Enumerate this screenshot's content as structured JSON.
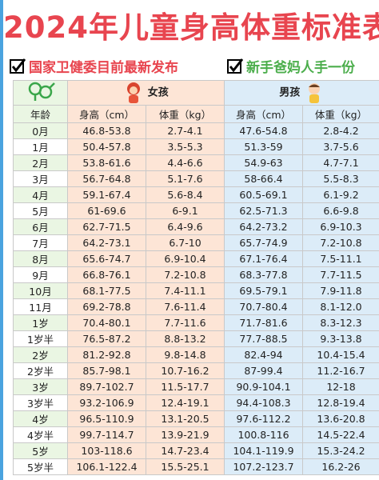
{
  "header": {
    "title_year": "2024年",
    "title_main": "儿童身高体重标准表",
    "badge_left": "国家卫健委目前最新发布",
    "badge_right": "新手爸妈人手一份"
  },
  "table": {
    "groups": {
      "girl": "女孩",
      "boy": "男孩"
    },
    "columns": [
      "年龄",
      "身高（cm）",
      "体重（kg）",
      "身高（cm）",
      "体重（kg）"
    ],
    "rows": [
      [
        "0月",
        "46.8-53.8",
        "2.7-4.1",
        "47.6-54.8",
        "2.8-4.2"
      ],
      [
        "1月",
        "50.4-57.8",
        "3.5-5.3",
        "51.3-59",
        "3.7-5.6"
      ],
      [
        "2月",
        "53.8-61.6",
        "4.4-6.6",
        "54.9-63",
        "4.7-7.1"
      ],
      [
        "3月",
        "56.7-64.8",
        "5.1-7.6",
        "58-66.4",
        "5.5-8.3"
      ],
      [
        "4月",
        "59.1-67.4",
        "5.6-8.4",
        "60.5-69.1",
        "6.1-9.2"
      ],
      [
        "5月",
        "61-69.6",
        "6-9.1",
        "62.5-71.3",
        "6.6-9.8"
      ],
      [
        "6月",
        "62.7-71.5",
        "6.4-9.6",
        "64.2-73.2",
        "6.9-10.3"
      ],
      [
        "7月",
        "64.2-73.1",
        "6.7-10",
        "65.7-74.9",
        "7.2-10.8"
      ],
      [
        "8月",
        "65.6-74.7",
        "6.9-10.4",
        "67.1-76.4",
        "7.5-11.1"
      ],
      [
        "9月",
        "66.8-76.1",
        "7.2-10.8",
        "68.3-77.8",
        "7.7-11.5"
      ],
      [
        "10月",
        "68.1-77.5",
        "7.4-11.1",
        "69.5-79.1",
        "7.9-11.8"
      ],
      [
        "11月",
        "69.2-78.8",
        "7.6-11.4",
        "70.7-80.4",
        "8.1-12.0"
      ],
      [
        "1岁",
        "70.4-80.1",
        "7.7-11.6",
        "71.7-81.6",
        "8.3-12.3"
      ],
      [
        "1岁半",
        "76.5-87.2",
        "8.8-13.2",
        "77.7-88.5",
        "9.3-13.8"
      ],
      [
        "2岁",
        "81.2-92.8",
        "9.8-14.8",
        "82.4-94",
        "10.4-15.4"
      ],
      [
        "2岁半",
        "85.7-98.1",
        "10.7-16.2",
        "87-99.4",
        "11.2-16.7"
      ],
      [
        "3岁",
        "89.7-102.7",
        "11.5-17.7",
        "90.9-104.1",
        "12-18"
      ],
      [
        "3岁半",
        "93.2-106.9",
        "12.4-19.1",
        "94.4-108.3",
        "12.8-19.4"
      ],
      [
        "4岁",
        "96.5-110.9",
        "13.1-20.5",
        "97.6-112.2",
        "13.6-20.8"
      ],
      [
        "4岁半",
        "99.7-114.7",
        "13.9-21.9",
        "100.8-116",
        "14.5-22.4"
      ],
      [
        "5岁",
        "103-118.6",
        "14.7-23.4",
        "104.1-119.9",
        "15.3-24.2"
      ],
      [
        "5岁半",
        "106.1-122.4",
        "15.5-25.1",
        "107.2-123.7",
        "16.2-26"
      ]
    ]
  }
}
